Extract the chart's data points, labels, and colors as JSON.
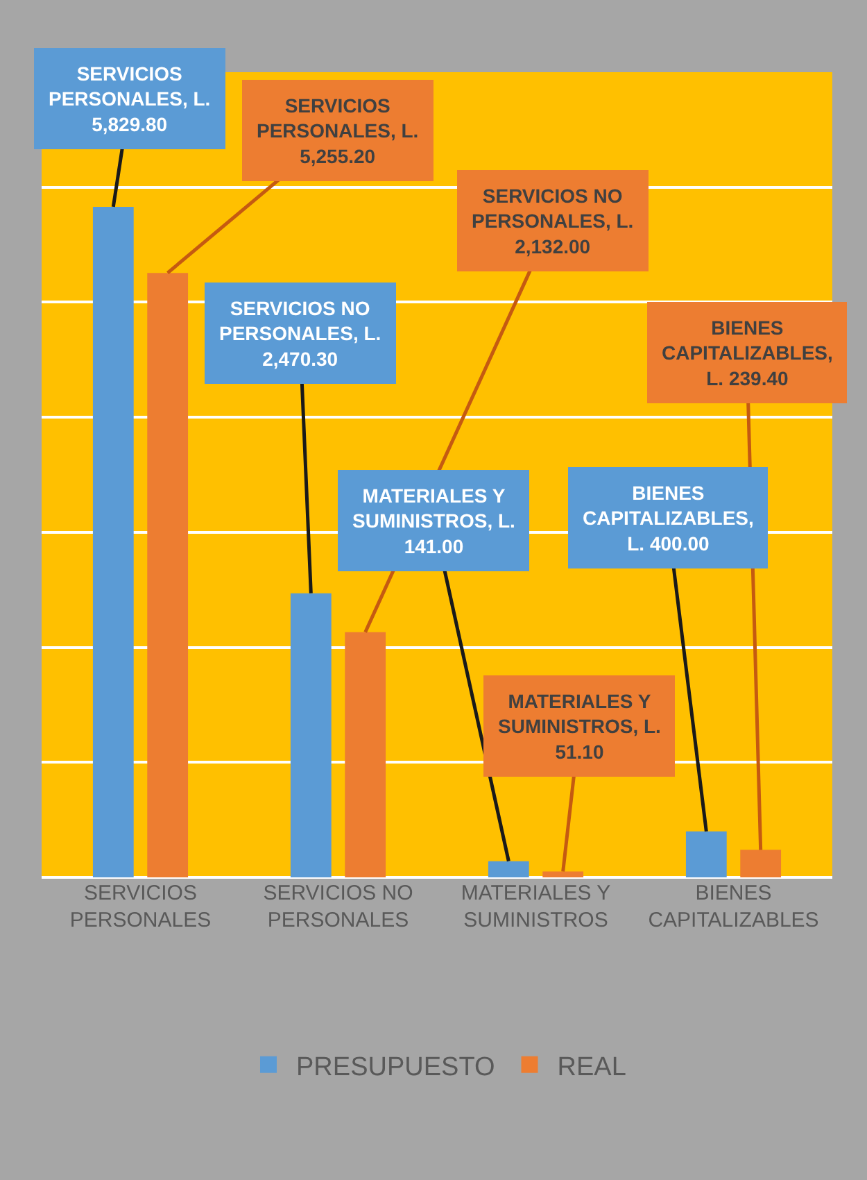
{
  "chart_data": {
    "type": "bar",
    "categories": [
      "SERVICIOS PERSONALES",
      "SERVICIOS NO PERSONALES",
      "MATERIALES Y SUMINISTROS",
      "BIENES CAPITALIZABLES"
    ],
    "series": [
      {
        "name": "PRESUPUESTO",
        "color": "#5b9bd5",
        "values": [
          5829.8,
          2470.3,
          141.0,
          400.0
        ],
        "value_labels": [
          "SERVICIOS PERSONALES, L. 5,829.80",
          "SERVICIOS NO PERSONALES, L. 2,470.30",
          "MATERIALES Y SUMINISTROS, L. 141.00",
          "BIENES CAPITALIZABLES, L. 400.00"
        ]
      },
      {
        "name": "REAL",
        "color": "#ed7d31",
        "values": [
          5255.2,
          2132.0,
          51.1,
          239.4
        ],
        "value_labels": [
          "SERVICIOS PERSONALES, L. 5,255.20",
          "SERVICIOS NO PERSONALES, L. 2,132.00",
          "MATERIALES Y SUMINISTROS, L. 51.10",
          "BIENES CAPITALIZABLES, L. 239.40"
        ]
      }
    ],
    "ylim": [
      0,
      7000
    ],
    "yticks": [
      {
        "value": 1000,
        "label": null
      },
      {
        "value": 2000,
        "label": null
      },
      {
        "value": 3000,
        "label": null
      },
      {
        "value": 4000,
        "label": null
      },
      {
        "value": 5000,
        "label": null
      },
      {
        "value": 6000,
        "label": null
      },
      {
        "value": 7000,
        "label": null
      }
    ],
    "tick_labels": "x",
    "grid": "y",
    "legend": "bottom"
  }
}
